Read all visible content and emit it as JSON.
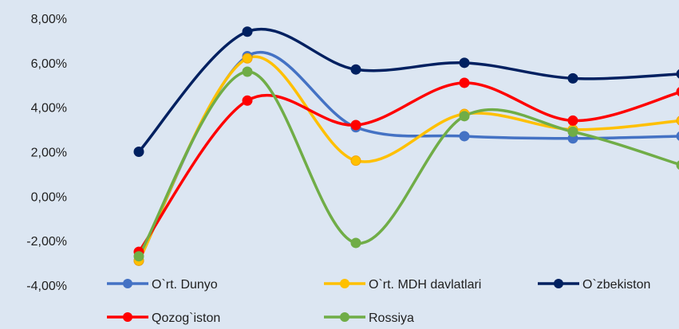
{
  "chart_data": {
    "type": "line",
    "smooth": true,
    "title": "",
    "xlabel": "",
    "ylabel": "",
    "ylim": [
      -4,
      8
    ],
    "yticks": [
      -4,
      -2,
      0,
      2,
      4,
      6,
      8
    ],
    "ytick_labels": [
      "-4,00%",
      "-2,00%",
      "0,00%",
      "2,00%",
      "4,00%",
      "6,00%",
      "8,00%"
    ],
    "x": [
      1,
      2,
      3,
      4,
      5,
      6
    ],
    "grid": false,
    "legend_position": "bottom",
    "series": [
      {
        "name": "O`rt. Dunyo",
        "color": "#4472c4",
        "values": [
          -2.9,
          6.3,
          3.1,
          2.7,
          2.6,
          2.7
        ]
      },
      {
        "name": "O`rt. MDH davlatlari",
        "color": "#ffc000",
        "values": [
          -2.9,
          6.2,
          1.6,
          3.7,
          3.0,
          3.4
        ]
      },
      {
        "name": "O`zbekiston",
        "color": "#002060",
        "values": [
          2.0,
          7.4,
          5.7,
          6.0,
          5.3,
          5.5
        ]
      },
      {
        "name": "Qozog`iston",
        "color": "#ff0000",
        "values": [
          -2.5,
          4.3,
          3.2,
          5.1,
          3.4,
          4.7
        ]
      },
      {
        "name": "Rossiya",
        "color": "#70ad47",
        "values": [
          -2.7,
          5.6,
          -2.1,
          3.6,
          2.9,
          1.4
        ]
      }
    ]
  }
}
